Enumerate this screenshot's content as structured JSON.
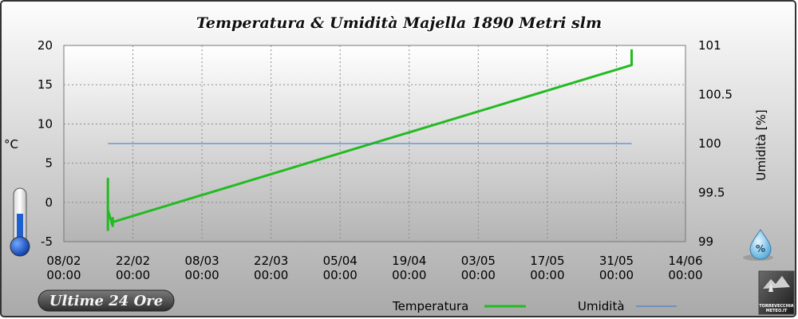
{
  "header": {
    "title": "Temperatura & Umidità Majella 1890 Metri slm"
  },
  "badge": {
    "period_label": "Ultime 24 Ore"
  },
  "axes": {
    "left_unit": "°C",
    "right_title": "Umidità [%]"
  },
  "logo": {
    "text": "TORREVECCHIA METEO.IT"
  },
  "chart_data": {
    "type": "line",
    "title": "Temperatura & Umidità Majella 1890 Metri slm",
    "xlabel": "",
    "ylabel": "°C",
    "y2label": "Umidità [%]",
    "x_ticks": [
      "08/02 00:00",
      "22/02 00:00",
      "08/03 00:00",
      "22/03 00:00",
      "05/04 00:00",
      "19/04 00:00",
      "03/05 00:00",
      "17/05 00:00",
      "31/05 00:00",
      "14/06 00:00"
    ],
    "x_range": [
      "2024-02-08",
      "2024-06-14"
    ],
    "ylim": [
      -5,
      20
    ],
    "y_ticks": [
      -5,
      0,
      5,
      10,
      15,
      20
    ],
    "y2lim": [
      99,
      101
    ],
    "y2_ticks": [
      "99",
      "99.5",
      "100",
      "100.5",
      "101"
    ],
    "grid": true,
    "legend_position": "bottom",
    "series": [
      {
        "name": "Temperatura",
        "axis": "left",
        "color": "#22bb22",
        "x": [
          "2024-02-17",
          "2024-02-17",
          "2024-02-17",
          "2024-02-17",
          "2024-02-17",
          "2024-02-18",
          "2024-02-18",
          "2024-02-18",
          "2024-06-03",
          "2024-06-03",
          "2024-06-03"
        ],
        "y": [
          -1.5,
          -3.5,
          3.0,
          -3.5,
          -1.0,
          -3.0,
          -2.0,
          -2.5,
          17.5,
          17.5,
          19.5
        ]
      },
      {
        "name": "Umidità",
        "axis": "right",
        "color": "#3377cc",
        "x": [
          "2024-02-17",
          "2024-06-03"
        ],
        "y": [
          100,
          100
        ]
      }
    ]
  }
}
